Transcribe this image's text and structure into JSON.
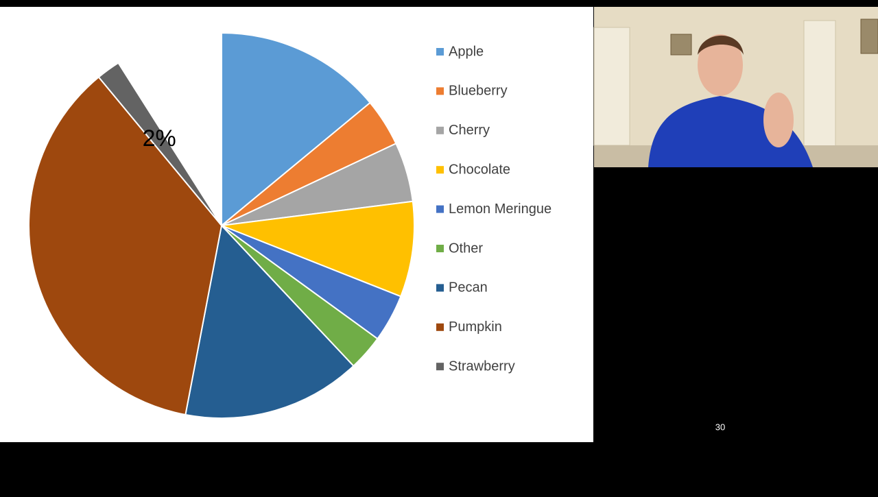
{
  "chart_data": {
    "type": "pie",
    "categories": [
      "Apple",
      "Blueberry",
      "Cherry",
      "Chocolate",
      "Lemon Meringue",
      "Other",
      "Pecan",
      "Pumpkin",
      "Strawberry"
    ],
    "values": [
      14,
      4,
      5,
      8,
      4,
      3,
      15,
      36,
      2
    ],
    "value_labels": [
      null,
      null,
      null,
      null,
      null,
      null,
      null,
      null,
      "2%"
    ],
    "colors": [
      "#5b9bd5",
      "#ed7d31",
      "#a5a5a5",
      "#ffc000",
      "#4472c4",
      "#70ad47",
      "#255e91",
      "#9e480e",
      "#636363"
    ],
    "legend": "right"
  },
  "page_number": "30"
}
